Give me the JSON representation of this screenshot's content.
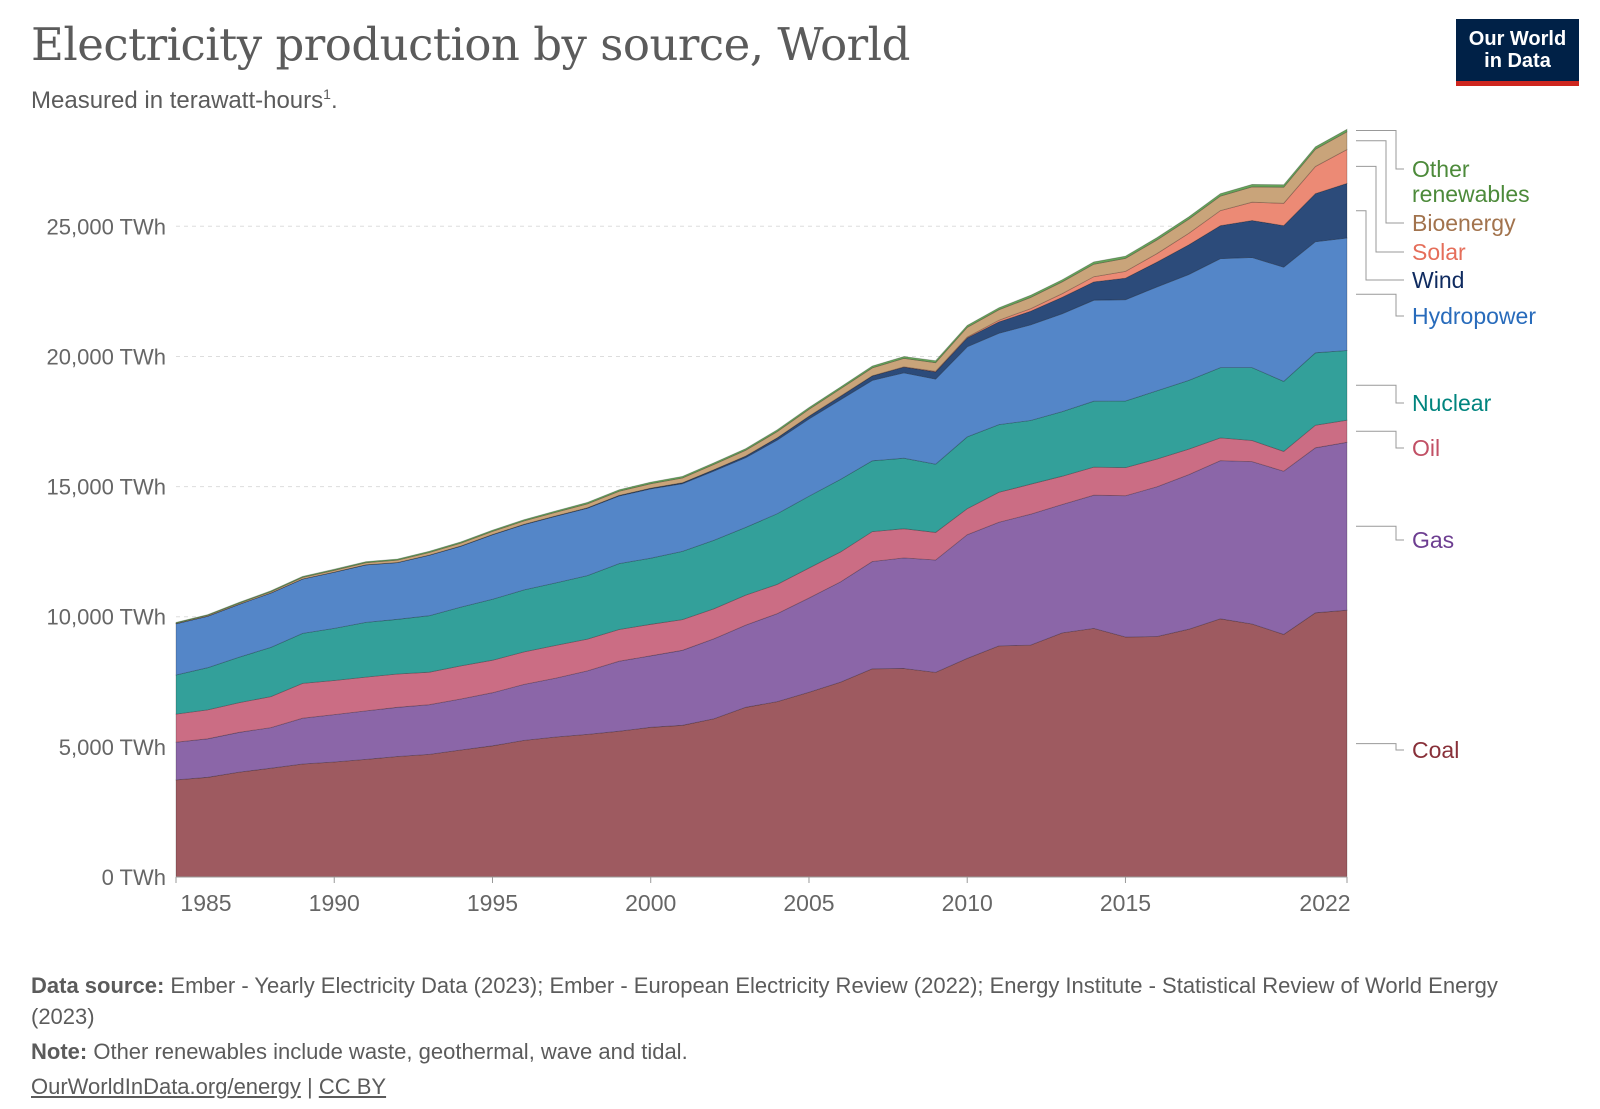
{
  "header": {
    "title": "Electricity production by source, World",
    "subtitle": "Measured in terawatt-hours",
    "subtitle_sup": "1",
    "subtitle_end": ".",
    "logo_line1": "Our World",
    "logo_line2": "in Data"
  },
  "footer": {
    "source_label": "Data source:",
    "source_text": "Ember - Yearly Electricity Data (2023); Ember - European Electricity Review (2022); Energy Institute - Statistical Review of World Energy (2023)",
    "note_label": "Note:",
    "note_text": "Other renewables include waste, geothermal, wave and tidal.",
    "link_text": "OurWorldInData.org/energy",
    "separator": "|",
    "license_text": "CC BY"
  },
  "chart_data": {
    "type": "area",
    "stacked": true,
    "x": [
      1985,
      1986,
      1987,
      1988,
      1989,
      1990,
      1991,
      1992,
      1993,
      1994,
      1995,
      1996,
      1997,
      1998,
      1999,
      2000,
      2001,
      2002,
      2003,
      2004,
      2005,
      2006,
      2007,
      2008,
      2009,
      2010,
      2011,
      2012,
      2013,
      2014,
      2015,
      2016,
      2017,
      2018,
      2019,
      2020,
      2021,
      2022
    ],
    "ylim": [
      0,
      28700
    ],
    "y_ticks": [
      0,
      5000,
      10000,
      15000,
      20000,
      25000
    ],
    "y_tick_labels": [
      "0 TWh",
      "5,000 TWh",
      "10,000 TWh",
      "15,000 TWh",
      "20,000 TWh",
      "25,000 TWh"
    ],
    "x_ticks": [
      1985,
      1990,
      1995,
      2000,
      2005,
      2010,
      2015,
      2022
    ],
    "x_tick_labels": [
      "1985",
      "1990",
      "1995",
      "2000",
      "2005",
      "2010",
      "2015",
      "2022"
    ],
    "grid": "horizontal dashed",
    "legend": "right, inline labels",
    "series": [
      {
        "name": "Coal",
        "color": "#9e5a60",
        "label_color": "#883039",
        "values": [
          3730,
          3830,
          4030,
          4180,
          4340,
          4420,
          4520,
          4630,
          4710,
          4880,
          5040,
          5250,
          5380,
          5480,
          5600,
          5750,
          5830,
          6080,
          6520,
          6740,
          7100,
          7490,
          8000,
          8010,
          7860,
          8400,
          8880,
          8910,
          9380,
          9550,
          9220,
          9240,
          9520,
          9920,
          9720,
          9320,
          10150,
          10250
        ]
      },
      {
        "name": "Gas",
        "color": "#8b66a8",
        "label_color": "#6d3e91",
        "values": [
          1450,
          1480,
          1530,
          1560,
          1760,
          1820,
          1860,
          1890,
          1910,
          1960,
          2040,
          2150,
          2260,
          2440,
          2690,
          2750,
          2880,
          3070,
          3160,
          3380,
          3620,
          3850,
          4120,
          4250,
          4320,
          4750,
          4750,
          5030,
          4930,
          5120,
          5430,
          5750,
          5940,
          6080,
          6240,
          6270,
          6340,
          6450
        ]
      },
      {
        "name": "Oil",
        "color": "#cb6d84",
        "label_color": "#c15065",
        "values": [
          1080,
          1110,
          1140,
          1190,
          1340,
          1310,
          1300,
          1280,
          1250,
          1270,
          1250,
          1250,
          1260,
          1220,
          1220,
          1210,
          1180,
          1160,
          1150,
          1120,
          1150,
          1150,
          1150,
          1120,
          1060,
          1000,
          1150,
          1150,
          1090,
          1080,
          1080,
          1070,
          980,
          870,
          810,
          760,
          870,
          850
        ]
      },
      {
        "name": "Nuclear",
        "color": "#33a09a",
        "label_color": "#00847e",
        "values": [
          1500,
          1620,
          1750,
          1890,
          1920,
          2000,
          2100,
          2100,
          2170,
          2260,
          2340,
          2380,
          2400,
          2440,
          2530,
          2540,
          2620,
          2630,
          2600,
          2720,
          2760,
          2790,
          2720,
          2710,
          2620,
          2760,
          2600,
          2450,
          2480,
          2530,
          2560,
          2620,
          2640,
          2700,
          2800,
          2690,
          2780,
          2680
        ]
      },
      {
        "name": "Hydropower",
        "color": "#5486c8",
        "label_color": "#286bbb",
        "values": [
          1970,
          1980,
          2030,
          2090,
          2090,
          2160,
          2210,
          2180,
          2320,
          2340,
          2480,
          2510,
          2560,
          2590,
          2600,
          2660,
          2600,
          2660,
          2680,
          2830,
          2970,
          3060,
          3090,
          3280,
          3270,
          3460,
          3510,
          3670,
          3760,
          3880,
          3890,
          3990,
          4070,
          4190,
          4230,
          4390,
          4270,
          4320
        ]
      },
      {
        "name": "Wind",
        "color": "#2c4b7a",
        "label_color": "#0f2b60",
        "values": [
          0,
          0,
          0,
          0,
          0,
          4,
          5,
          5,
          6,
          7,
          8,
          10,
          12,
          16,
          21,
          31,
          38,
          52,
          63,
          85,
          104,
          133,
          171,
          221,
          277,
          342,
          437,
          524,
          635,
          705,
          831,
          958,
          1138,
          1267,
          1422,
          1597,
          1848,
          2100
        ]
      },
      {
        "name": "Solar",
        "color": "#ec8a75",
        "label_color": "#e56e5a",
        "values": [
          0,
          0,
          0,
          0,
          0,
          0,
          0,
          0,
          0,
          0,
          0,
          0,
          0,
          0,
          1,
          1,
          1,
          2,
          2,
          3,
          4,
          6,
          8,
          12,
          21,
          32,
          64,
          100,
          139,
          198,
          256,
          329,
          445,
          575,
          703,
          857,
          1040,
          1300
        ]
      },
      {
        "name": "Bioenergy",
        "color": "#c9a47a",
        "label_color": "#a2734d",
        "values": [
          20,
          30,
          40,
          50,
          60,
          70,
          80,
          90,
          100,
          110,
          120,
          130,
          140,
          150,
          160,
          170,
          180,
          200,
          220,
          240,
          260,
          280,
          300,
          320,
          330,
          370,
          400,
          430,
          450,
          480,
          500,
          520,
          540,
          560,
          590,
          620,
          660,
          680
        ]
      },
      {
        "name": "Other renewables",
        "color": "#66a35a",
        "label_color": "#4c8a3a",
        "values": [
          30,
          32,
          34,
          36,
          38,
          40,
          42,
          44,
          46,
          48,
          50,
          52,
          54,
          56,
          58,
          60,
          62,
          64,
          66,
          68,
          70,
          72,
          74,
          76,
          78,
          80,
          82,
          84,
          86,
          88,
          90,
          92,
          92,
          94,
          94,
          96,
          96,
          98
        ]
      }
    ]
  }
}
